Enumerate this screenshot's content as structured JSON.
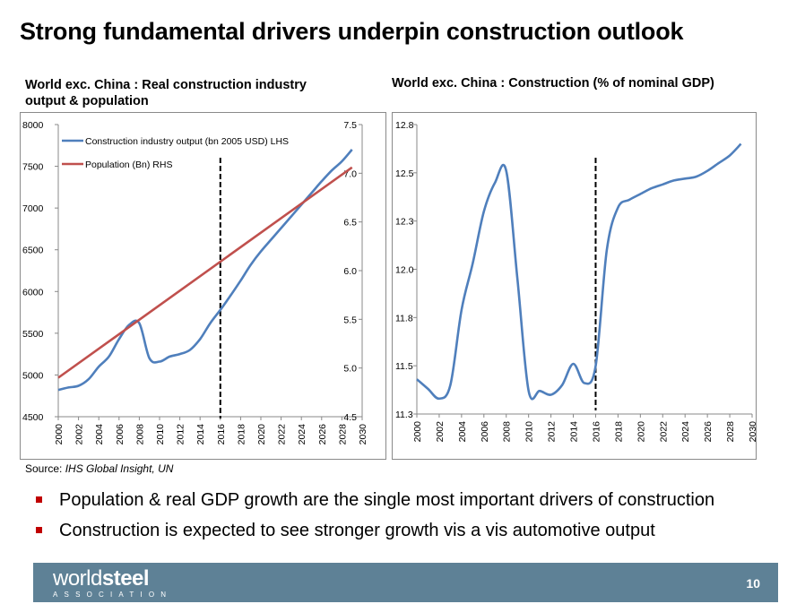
{
  "page": {
    "title": "Strong fundamental drivers underpin construction outlook",
    "source_label": "Source:",
    "source_text": "IHS Global Insight, UN",
    "bullets": [
      "Population & real GDP growth are the single most important drivers of construction",
      "Construction is expected to see stronger growth vis a vis automotive output"
    ],
    "footer": {
      "logo_word1": "world",
      "logo_word2": "steel",
      "logo_sub": "ASSOCIATION",
      "page_number": "10"
    }
  },
  "colors": {
    "blue_line": "#4f7fbc",
    "red_line": "#c0504d",
    "footer_bg": "#5e8196",
    "bullet": "#c00000"
  },
  "chart_data": [
    {
      "type": "line",
      "title": "World exc. China : Real construction industry output & population",
      "x_ticks": [
        "2000",
        "2002",
        "2004",
        "2006",
        "2008",
        "2010",
        "2012",
        "2014",
        "2016",
        "2018",
        "2020",
        "2022",
        "2024",
        "2026",
        "2028",
        "2030"
      ],
      "y_left": {
        "range": [
          4500,
          8000
        ],
        "ticks": [
          "4500",
          "5000",
          "5500",
          "6000",
          "6500",
          "7000",
          "7500",
          "8000"
        ]
      },
      "y_right": {
        "range": [
          4.5,
          7.5
        ],
        "ticks": [
          "4.5",
          "5.0",
          "5.5",
          "6.0",
          "6.5",
          "7.0",
          "7.5"
        ]
      },
      "marker_year": 2016,
      "legend_position": "top-left",
      "series": [
        {
          "name": "Construction industry output (bn 2005 USD) LHS",
          "axis": "left",
          "points": [
            [
              2000,
              4820
            ],
            [
              2001,
              4850
            ],
            [
              2002,
              4870
            ],
            [
              2003,
              4950
            ],
            [
              2004,
              5100
            ],
            [
              2005,
              5220
            ],
            [
              2006,
              5430
            ],
            [
              2007,
              5600
            ],
            [
              2008,
              5620
            ],
            [
              2009,
              5200
            ],
            [
              2010,
              5160
            ],
            [
              2011,
              5220
            ],
            [
              2012,
              5250
            ],
            [
              2013,
              5300
            ],
            [
              2014,
              5430
            ],
            [
              2015,
              5620
            ],
            [
              2016,
              5780
            ],
            [
              2017,
              5950
            ],
            [
              2018,
              6130
            ],
            [
              2019,
              6320
            ],
            [
              2020,
              6480
            ],
            [
              2021,
              6620
            ],
            [
              2022,
              6760
            ],
            [
              2023,
              6900
            ],
            [
              2024,
              7040
            ],
            [
              2025,
              7180
            ],
            [
              2026,
              7320
            ],
            [
              2027,
              7450
            ],
            [
              2028,
              7560
            ],
            [
              2029,
              7700
            ]
          ]
        },
        {
          "name": "Population (Bn) RHS",
          "axis": "right",
          "points": [
            [
              2000,
              4.9
            ],
            [
              2029,
              7.06
            ]
          ]
        }
      ]
    },
    {
      "type": "line",
      "title": "World exc. China : Construction (% of nominal GDP)",
      "x_ticks": [
        "2000",
        "2002",
        "2004",
        "2006",
        "2008",
        "2010",
        "2012",
        "2014",
        "2016",
        "2018",
        "2020",
        "2022",
        "2024",
        "2026",
        "2028",
        "2030"
      ],
      "y_left": {
        "range": [
          11.3,
          12.8
        ],
        "ticks": [
          "11.3",
          "11.5",
          "11.8",
          "12.0",
          "12.3",
          "12.5",
          "12.8"
        ]
      },
      "marker_year": 2016,
      "series": [
        {
          "name": "",
          "axis": "left",
          "points": [
            [
              2000,
              11.48
            ],
            [
              2001,
              11.43
            ],
            [
              2002,
              11.38
            ],
            [
              2003,
              11.45
            ],
            [
              2004,
              11.84
            ],
            [
              2005,
              12.08
            ],
            [
              2006,
              12.35
            ],
            [
              2007,
              12.5
            ],
            [
              2008,
              12.56
            ],
            [
              2009,
              12.0
            ],
            [
              2010,
              11.42
            ],
            [
              2011,
              11.42
            ],
            [
              2012,
              11.4
            ],
            [
              2013,
              11.45
            ],
            [
              2014,
              11.56
            ],
            [
              2015,
              11.46
            ],
            [
              2016,
              11.55
            ],
            [
              2017,
              12.15
            ],
            [
              2018,
              12.37
            ],
            [
              2019,
              12.41
            ],
            [
              2020,
              12.44
            ],
            [
              2021,
              12.47
            ],
            [
              2022,
              12.49
            ],
            [
              2023,
              12.51
            ],
            [
              2024,
              12.52
            ],
            [
              2025,
              12.53
            ],
            [
              2026,
              12.56
            ],
            [
              2027,
              12.6
            ],
            [
              2028,
              12.64
            ],
            [
              2029,
              12.7
            ]
          ]
        }
      ]
    }
  ]
}
